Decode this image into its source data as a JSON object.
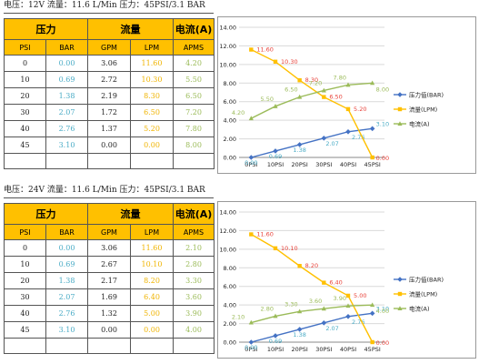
{
  "headers": {
    "pressure": "压力",
    "flow": "流量",
    "current": "电流(A)",
    "psi": "PSI",
    "bar": "BAR",
    "gpm": "GPM",
    "lpm": "LPM",
    "apms": "APMS"
  },
  "colors": {
    "header_bg": "#ffc000",
    "bar_series": "#4472c4",
    "lpm_series": "#ffc000",
    "amp_series": "#9bbb59",
    "bar_text": "#4bacc6",
    "lpm_text": "#f0b400"
  },
  "sections": [
    {
      "caption": "电压：12V  流量：11.6 L/Min   压力：45PSI/3.1 BAR",
      "rows": [
        {
          "psi": "0",
          "bar": "0.00",
          "gpm": "3.06",
          "lpm": "11.60",
          "amp": "4.20"
        },
        {
          "psi": "10",
          "bar": "0.69",
          "gpm": "2.72",
          "lpm": "10.30",
          "amp": "5.50"
        },
        {
          "psi": "20",
          "bar": "1.38",
          "gpm": "2.19",
          "lpm": "8.30",
          "amp": "6.50"
        },
        {
          "psi": "30",
          "bar": "2.07",
          "gpm": "1.72",
          "lpm": "6.50",
          "amp": "7.20"
        },
        {
          "psi": "40",
          "bar": "2.76",
          "gpm": "1.37",
          "lpm": "5.20",
          "amp": "7.80"
        },
        {
          "psi": "45",
          "bar": "3.10",
          "gpm": "0.00",
          "lpm": "0.00",
          "amp": "8.00"
        }
      ],
      "chart_data": {
        "type": "line",
        "categories": [
          "0PSI",
          "10PSI",
          "20PSI",
          "30PSI",
          "40PSI",
          "45PSI"
        ],
        "ylim": [
          0,
          14
        ],
        "yticks": [
          "0.00",
          "2.00",
          "4.00",
          "6.00",
          "8.00",
          "10.00",
          "12.00",
          "14.00"
        ],
        "grid": true,
        "legend": "right",
        "series": [
          {
            "name": "压力值(BAR)",
            "color": "#4472c4",
            "marker": "diamond",
            "values": [
              0.0,
              0.69,
              1.38,
              2.07,
              2.76,
              3.1
            ],
            "labels": [
              "0.00",
              "0.69",
              "1.38",
              "2.07",
              "2.76",
              "3.10"
            ]
          },
          {
            "name": "流量(LPM)",
            "color": "#ffc000",
            "marker": "square",
            "values": [
              11.6,
              10.3,
              8.3,
              6.5,
              5.2,
              0.0
            ],
            "labels": [
              "11.60",
              "10.30",
              "8.30",
              "6.50",
              "5.20",
              "0.00"
            ]
          },
          {
            "name": "电流(A)",
            "color": "#9bbb59",
            "marker": "triangle",
            "values": [
              4.2,
              5.5,
              6.5,
              7.2,
              7.8,
              8.0
            ],
            "labels": [
              "4.20",
              "5.50",
              "6.50",
              "7.20",
              "7.80",
              "8.00"
            ]
          }
        ]
      }
    },
    {
      "caption": "电压：24V  流量：11.6 L/Min   压力：45PSI/3.1 BAR",
      "rows": [
        {
          "psi": "0",
          "bar": "0.00",
          "gpm": "3.06",
          "lpm": "11.60",
          "amp": "2.10"
        },
        {
          "psi": "10",
          "bar": "0.69",
          "gpm": "2.67",
          "lpm": "10.10",
          "amp": "2.80"
        },
        {
          "psi": "20",
          "bar": "1.38",
          "gpm": "2.17",
          "lpm": "8.20",
          "amp": "3.30"
        },
        {
          "psi": "30",
          "bar": "2.07",
          "gpm": "1.69",
          "lpm": "6.40",
          "amp": "3.60"
        },
        {
          "psi": "40",
          "bar": "2.76",
          "gpm": "1.32",
          "lpm": "5.00",
          "amp": "3.90"
        },
        {
          "psi": "45",
          "bar": "3.10",
          "gpm": "0.00",
          "lpm": "0.00",
          "amp": "4.00"
        }
      ],
      "chart_data": {
        "type": "line",
        "categories": [
          "0PSI",
          "10PSI",
          "20PSI",
          "30PSI",
          "40PSI",
          "45PSI"
        ],
        "ylim": [
          0,
          14
        ],
        "yticks": [
          "0.00",
          "2.00",
          "4.00",
          "6.00",
          "8.00",
          "10.00",
          "12.00",
          "14.00"
        ],
        "grid": true,
        "legend": "right",
        "series": [
          {
            "name": "压力值(BAR)",
            "color": "#4472c4",
            "marker": "diamond",
            "values": [
              0.0,
              0.69,
              1.38,
              2.07,
              2.76,
              3.1
            ],
            "labels": [
              "0.00",
              "0.69",
              "1.38",
              "2.07",
              "2.76",
              "3.10"
            ]
          },
          {
            "name": "流量(LPM)",
            "color": "#ffc000",
            "marker": "square",
            "values": [
              11.6,
              10.1,
              8.2,
              6.4,
              5.0,
              0.0
            ],
            "labels": [
              "11.60",
              "10.10",
              "8.20",
              "6.40",
              "5.00",
              "0.00"
            ]
          },
          {
            "name": "电流(A)",
            "color": "#9bbb59",
            "marker": "triangle",
            "values": [
              2.1,
              2.8,
              3.3,
              3.6,
              3.9,
              4.0
            ],
            "labels": [
              "2.10",
              "2.80",
              "3.30",
              "3.60",
              "3.90",
              "4.00"
            ]
          }
        ]
      }
    }
  ]
}
